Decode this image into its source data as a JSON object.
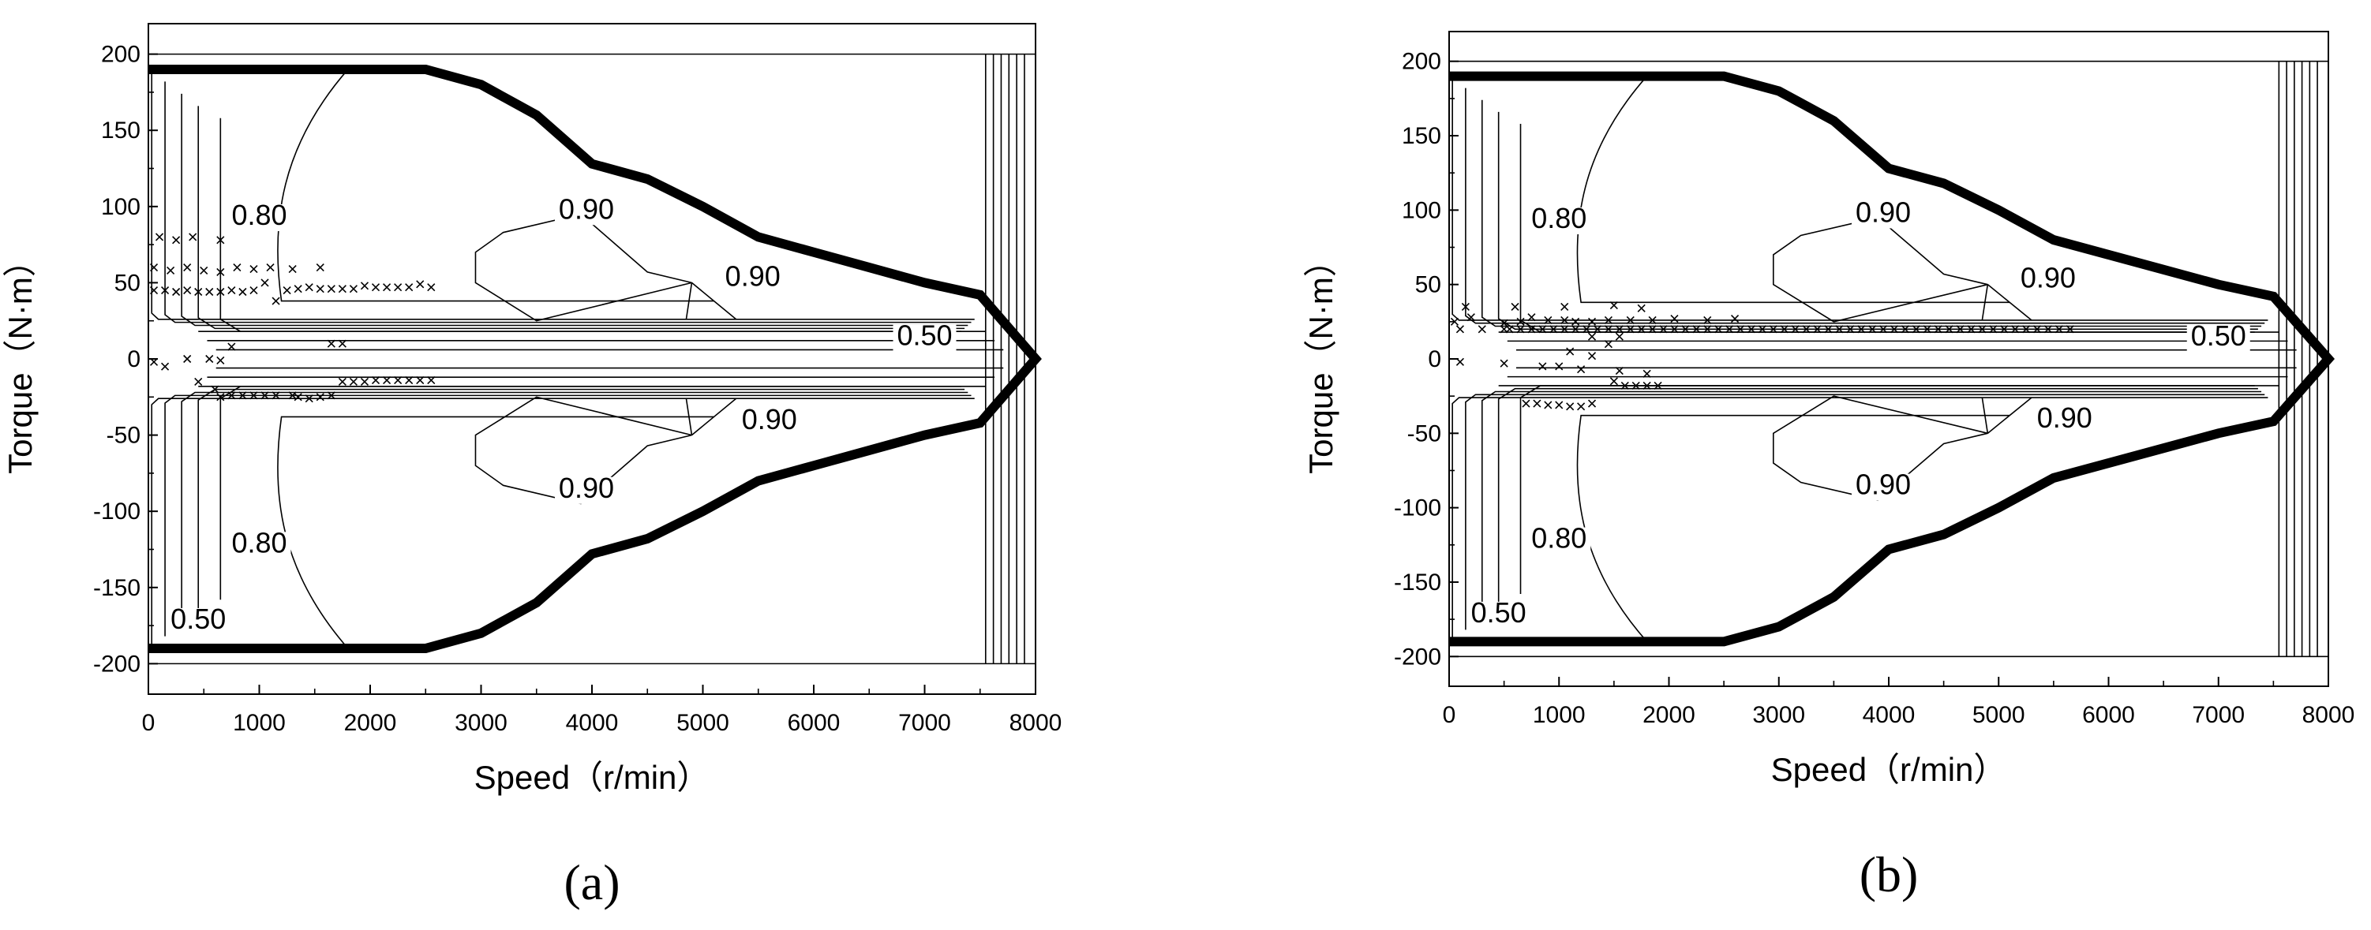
{
  "chart_data": [
    {
      "type": "contour",
      "panel_label": "(a)",
      "xlabel": "Speed（r/min）",
      "ylabel": "Torque（N·m）",
      "xlim": [
        0,
        8000
      ],
      "ylim": [
        -220,
        220
      ],
      "xticks": [
        0,
        1000,
        2000,
        3000,
        4000,
        5000,
        6000,
        7000,
        8000
      ],
      "yticks": [
        200,
        150,
        100,
        50,
        0,
        -50,
        -100,
        -150,
        -200
      ],
      "boundary": {
        "x": [
          0,
          2500,
          3000,
          3500,
          4000,
          4500,
          5000,
          5500,
          6000,
          6500,
          7000,
          7500,
          8000
        ],
        "y": [
          190,
          190,
          180,
          160,
          128,
          118,
          100,
          80,
          70,
          60,
          50,
          42,
          0
        ]
      },
      "contour_labels": [
        {
          "text": "0.80",
          "x": 1000,
          "y": 88
        },
        {
          "text": "0.90",
          "x": 3950,
          "y": 92
        },
        {
          "text": "0.90",
          "x": 5450,
          "y": 48
        },
        {
          "text": "0.50",
          "x": 7000,
          "y": 9
        },
        {
          "text": "0.90",
          "x": 5600,
          "y": -46
        },
        {
          "text": "0.90",
          "x": 3950,
          "y": -91
        },
        {
          "text": "0.80",
          "x": 1000,
          "y": -127
        },
        {
          "text": "0.50",
          "x": 450,
          "y": -177
        }
      ],
      "operating_points": [
        [
          100,
          80
        ],
        [
          250,
          78
        ],
        [
          400,
          80
        ],
        [
          650,
          78
        ],
        [
          50,
          60
        ],
        [
          200,
          58
        ],
        [
          350,
          60
        ],
        [
          500,
          58
        ],
        [
          650,
          57
        ],
        [
          800,
          60
        ],
        [
          950,
          59
        ],
        [
          1100,
          60
        ],
        [
          1300,
          59
        ],
        [
          1550,
          60
        ],
        [
          50,
          45
        ],
        [
          150,
          45
        ],
        [
          250,
          44
        ],
        [
          350,
          45
        ],
        [
          450,
          44
        ],
        [
          550,
          44
        ],
        [
          650,
          44
        ],
        [
          750,
          45
        ],
        [
          850,
          44
        ],
        [
          950,
          45
        ],
        [
          1050,
          50
        ],
        [
          1150,
          38
        ],
        [
          1250,
          45
        ],
        [
          1350,
          46
        ],
        [
          1450,
          47
        ],
        [
          1550,
          46
        ],
        [
          1650,
          46
        ],
        [
          1750,
          46
        ],
        [
          1850,
          46
        ],
        [
          1950,
          48
        ],
        [
          2050,
          47
        ],
        [
          2150,
          47
        ],
        [
          2250,
          47
        ],
        [
          2350,
          47
        ],
        [
          2450,
          49
        ],
        [
          2550,
          47
        ],
        [
          1650,
          10
        ],
        [
          1750,
          10
        ],
        [
          750,
          8
        ],
        [
          50,
          -2
        ],
        [
          150,
          -5
        ],
        [
          350,
          0
        ],
        [
          550,
          0
        ],
        [
          650,
          -1
        ],
        [
          450,
          -15
        ],
        [
          600,
          -20
        ],
        [
          650,
          -25
        ],
        [
          750,
          -24
        ],
        [
          850,
          -24
        ],
        [
          950,
          -24
        ],
        [
          1050,
          -24
        ],
        [
          1150,
          -24
        ],
        [
          1300,
          -24
        ],
        [
          1350,
          -25
        ],
        [
          1450,
          -26
        ],
        [
          1550,
          -25
        ],
        [
          1650,
          -24
        ],
        [
          1750,
          -15
        ],
        [
          1850,
          -15
        ],
        [
          1950,
          -15
        ],
        [
          2050,
          -14
        ],
        [
          2150,
          -14
        ],
        [
          2250,
          -14
        ],
        [
          2350,
          -14
        ],
        [
          2450,
          -14
        ],
        [
          2550,
          -14
        ]
      ]
    },
    {
      "type": "contour",
      "panel_label": "(b)",
      "xlabel": "Speed（r/min）",
      "ylabel": "Torque（N·m）",
      "xlim": [
        0,
        8000
      ],
      "ylim": [
        -220,
        220
      ],
      "xticks": [
        0,
        1000,
        2000,
        3000,
        4000,
        5000,
        6000,
        7000,
        8000
      ],
      "yticks": [
        200,
        150,
        100,
        50,
        0,
        -50,
        -100,
        -150,
        -200
      ],
      "boundary": {
        "x": [
          0,
          2500,
          3000,
          3500,
          4000,
          4500,
          5000,
          5500,
          6000,
          6500,
          7000,
          7500,
          8000
        ],
        "y": [
          190,
          190,
          180,
          160,
          128,
          118,
          100,
          80,
          70,
          60,
          50,
          42,
          0
        ]
      },
      "contour_labels": [
        {
          "text": "0.80",
          "x": 1000,
          "y": 88
        },
        {
          "text": "0.90",
          "x": 3950,
          "y": 92
        },
        {
          "text": "0.90",
          "x": 5450,
          "y": 48
        },
        {
          "text": "0.50",
          "x": 7000,
          "y": 9
        },
        {
          "text": "0.90",
          "x": 5600,
          "y": -46
        },
        {
          "text": "0.90",
          "x": 3950,
          "y": -91
        },
        {
          "text": "0.80",
          "x": 1000,
          "y": -127
        },
        {
          "text": "0.50",
          "x": 450,
          "y": -177
        }
      ],
      "operating_points": [
        [
          150,
          35
        ],
        [
          600,
          35
        ],
        [
          1050,
          35
        ],
        [
          1500,
          36
        ],
        [
          1750,
          34
        ],
        [
          50,
          25
        ],
        [
          200,
          28
        ],
        [
          500,
          24
        ],
        [
          650,
          25
        ],
        [
          750,
          28
        ],
        [
          900,
          26
        ],
        [
          1050,
          26
        ],
        [
          1150,
          25
        ],
        [
          1300,
          25
        ],
        [
          1450,
          26
        ],
        [
          1650,
          26
        ],
        [
          1850,
          26
        ],
        [
          2050,
          27
        ],
        [
          2350,
          26
        ],
        [
          2600,
          27
        ],
        [
          100,
          20
        ],
        [
          300,
          20
        ],
        [
          500,
          20
        ],
        [
          550,
          20
        ],
        [
          650,
          20
        ],
        [
          750,
          20
        ],
        [
          850,
          20
        ],
        [
          950,
          20
        ],
        [
          1050,
          20
        ],
        [
          1150,
          20
        ],
        [
          1250,
          20
        ],
        [
          1350,
          20
        ],
        [
          1450,
          20
        ],
        [
          1550,
          20
        ],
        [
          1650,
          20
        ],
        [
          1750,
          20
        ],
        [
          1850,
          20
        ],
        [
          1950,
          20
        ],
        [
          2050,
          20
        ],
        [
          2150,
          20
        ],
        [
          2250,
          20
        ],
        [
          2350,
          20
        ],
        [
          2450,
          20
        ],
        [
          2550,
          20
        ],
        [
          2650,
          20
        ],
        [
          2750,
          20
        ],
        [
          2850,
          20
        ],
        [
          2950,
          20
        ],
        [
          3050,
          20
        ],
        [
          3150,
          20
        ],
        [
          3250,
          20
        ],
        [
          3350,
          20
        ],
        [
          3450,
          20
        ],
        [
          3550,
          20
        ],
        [
          3650,
          20
        ],
        [
          3750,
          20
        ],
        [
          3850,
          20
        ],
        [
          3950,
          20
        ],
        [
          4050,
          20
        ],
        [
          4150,
          20
        ],
        [
          4250,
          20
        ],
        [
          4350,
          20
        ],
        [
          4450,
          20
        ],
        [
          4550,
          20
        ],
        [
          4650,
          20
        ],
        [
          4750,
          20
        ],
        [
          4850,
          20
        ],
        [
          4950,
          20
        ],
        [
          5050,
          20
        ],
        [
          5150,
          20
        ],
        [
          5250,
          20
        ],
        [
          5350,
          20
        ],
        [
          5450,
          20
        ],
        [
          5550,
          20
        ],
        [
          5650,
          20
        ],
        [
          1300,
          15
        ],
        [
          1450,
          10
        ],
        [
          1550,
          15
        ],
        [
          1100,
          5
        ],
        [
          1300,
          2
        ],
        [
          100,
          -2
        ],
        [
          500,
          -3
        ],
        [
          850,
          -5
        ],
        [
          1000,
          -5
        ],
        [
          1200,
          -7
        ],
        [
          1550,
          -8
        ],
        [
          1800,
          -10
        ],
        [
          1500,
          -15
        ],
        [
          1600,
          -18
        ],
        [
          1700,
          -18
        ],
        [
          1800,
          -18
        ],
        [
          1900,
          -18
        ],
        [
          700,
          -30
        ],
        [
          800,
          -30
        ],
        [
          900,
          -31
        ],
        [
          1000,
          -31
        ],
        [
          1100,
          -32
        ],
        [
          1200,
          -32
        ],
        [
          1300,
          -30
        ]
      ]
    }
  ]
}
